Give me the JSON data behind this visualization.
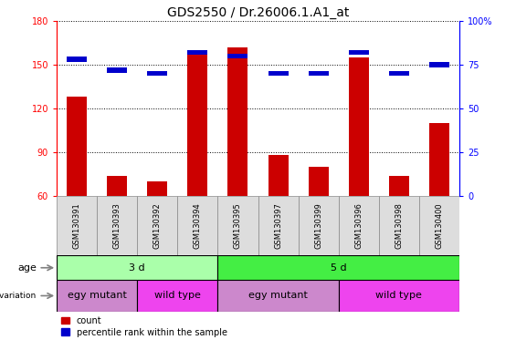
{
  "title": "GDS2550 / Dr.26006.1.A1_at",
  "samples": [
    "GSM130391",
    "GSM130393",
    "GSM130392",
    "GSM130394",
    "GSM130395",
    "GSM130397",
    "GSM130399",
    "GSM130396",
    "GSM130398",
    "GSM130400"
  ],
  "count_values": [
    128,
    74,
    70,
    160,
    162,
    88,
    80,
    155,
    74,
    110
  ],
  "percentile_values": [
    78,
    72,
    70,
    82,
    80,
    70,
    70,
    82,
    70,
    75
  ],
  "ylim_left": [
    60,
    180
  ],
  "ylim_right": [
    0,
    100
  ],
  "yticks_left": [
    60,
    90,
    120,
    150,
    180
  ],
  "yticks_right": [
    0,
    25,
    50,
    75,
    100
  ],
  "bar_width": 0.5,
  "count_color": "#CC0000",
  "percentile_color": "#0000CC",
  "age_groups": [
    {
      "label": "3 d",
      "start": 0,
      "end": 4,
      "color": "#AAFFAA"
    },
    {
      "label": "5 d",
      "start": 4,
      "end": 10,
      "color": "#44EE44"
    }
  ],
  "genotype_groups": [
    {
      "label": "egy mutant",
      "start": 0,
      "end": 2,
      "color": "#CC88CC"
    },
    {
      "label": "wild type",
      "start": 2,
      "end": 4,
      "color": "#EE44EE"
    },
    {
      "label": "egy mutant",
      "start": 4,
      "end": 7,
      "color": "#CC88CC"
    },
    {
      "label": "wild type",
      "start": 7,
      "end": 10,
      "color": "#EE44EE"
    }
  ],
  "title_fontsize": 10,
  "tick_fontsize": 7,
  "label_fontsize": 8,
  "annot_fontsize": 8
}
